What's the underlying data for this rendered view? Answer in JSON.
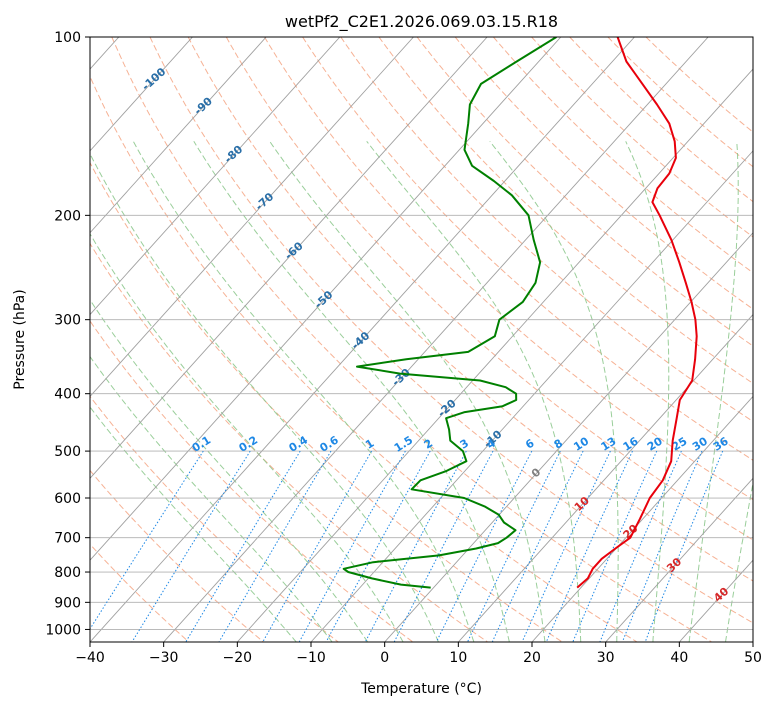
{
  "chart_data": {
    "type": "skew-t",
    "title": "wetPf2_C2E1.2026.069.03.15.R18",
    "xlabel": "Temperature (°C)",
    "ylabel": "Pressure (hPa)",
    "xlim": [
      -40,
      50
    ],
    "ylim": [
      1050,
      100
    ],
    "y_scale": "log",
    "x_ticks": [
      -40,
      -30,
      -20,
      -10,
      0,
      10,
      20,
      30,
      40,
      50
    ],
    "x_tick_labels": [
      "−40",
      "−30",
      "−20",
      "−10",
      "0",
      "10",
      "20",
      "30",
      "40",
      "50"
    ],
    "y_ticks": [
      100,
      200,
      300,
      400,
      500,
      600,
      700,
      800,
      900,
      1000
    ],
    "y_tick_labels": [
      "100",
      "200",
      "300",
      "400",
      "500",
      "600",
      "700",
      "800",
      "900",
      "1000"
    ],
    "grid": true,
    "series": [
      {
        "key": "temperature",
        "color": "#e8000b",
        "points": [
          [
            850,
            19.5
          ],
          [
            820,
            19.8
          ],
          [
            790,
            19.3
          ],
          [
            760,
            19.3
          ],
          [
            730,
            19.9
          ],
          [
            700,
            20.6
          ],
          [
            650,
            19.6
          ],
          [
            600,
            18.4
          ],
          [
            560,
            18.0
          ],
          [
            520,
            16.8
          ],
          [
            480,
            14.5
          ],
          [
            440,
            12.3
          ],
          [
            410,
            10.5
          ],
          [
            380,
            9.8
          ],
          [
            350,
            7.6
          ],
          [
            320,
            5.0
          ],
          [
            300,
            2.8
          ],
          [
            280,
            0.1
          ],
          [
            260,
            -3.0
          ],
          [
            240,
            -6.4
          ],
          [
            220,
            -10.2
          ],
          [
            200,
            -14.8
          ],
          [
            190,
            -17.4
          ],
          [
            180,
            -18.4
          ],
          [
            170,
            -18.6
          ],
          [
            160,
            -19.6
          ],
          [
            150,
            -21.8
          ],
          [
            140,
            -24.7
          ],
          [
            130,
            -28.7
          ],
          [
            120,
            -33.2
          ],
          [
            110,
            -38.1
          ],
          [
            100,
            -42.3
          ]
        ]
      },
      {
        "key": "dewpoint",
        "color": "#008000",
        "points": [
          [
            850,
            -0.4
          ],
          [
            840,
            -4.8
          ],
          [
            820,
            -9.5
          ],
          [
            800,
            -13.5
          ],
          [
            790,
            -14.5
          ],
          [
            770,
            -11.3
          ],
          [
            750,
            -3.2
          ],
          [
            730,
            1.0
          ],
          [
            715,
            3.3
          ],
          [
            700,
            3.8
          ],
          [
            680,
            4.1
          ],
          [
            660,
            1.6
          ],
          [
            640,
            -0.1
          ],
          [
            620,
            -3.0
          ],
          [
            600,
            -6.8
          ],
          [
            580,
            -15.0
          ],
          [
            560,
            -14.9
          ],
          [
            540,
            -12.5
          ],
          [
            520,
            -11.0
          ],
          [
            500,
            -12.7
          ],
          [
            480,
            -15.7
          ],
          [
            460,
            -17.2
          ],
          [
            440,
            -19.0
          ],
          [
            430,
            -17.3
          ],
          [
            420,
            -12.8
          ],
          [
            410,
            -11.7
          ],
          [
            400,
            -12.5
          ],
          [
            390,
            -14.7
          ],
          [
            380,
            -19.0
          ],
          [
            370,
            -30.7
          ],
          [
            360,
            -37.4
          ],
          [
            350,
            -31.6
          ],
          [
            340,
            -24.1
          ],
          [
            320,
            -22.4
          ],
          [
            300,
            -23.8
          ],
          [
            280,
            -22.8
          ],
          [
            260,
            -23.4
          ],
          [
            240,
            -25.3
          ],
          [
            220,
            -28.9
          ],
          [
            200,
            -32.6
          ],
          [
            185,
            -37.3
          ],
          [
            175,
            -41.5
          ],
          [
            165,
            -46.3
          ],
          [
            155,
            -49.3
          ],
          [
            140,
            -52.0
          ],
          [
            130,
            -54.1
          ],
          [
            120,
            -55.1
          ],
          [
            110,
            -53.0
          ],
          [
            100,
            -50.6
          ]
        ]
      }
    ],
    "dry_adiabats_c": [
      -30,
      -20,
      -10,
      0,
      10,
      20,
      30,
      40,
      50,
      60,
      70,
      80,
      90,
      100,
      110,
      120,
      130,
      140,
      150,
      160,
      170,
      180
    ],
    "moist_adiabats_c": [
      -15,
      -10,
      -5,
      0,
      5,
      10,
      15,
      20,
      25,
      30,
      35,
      40,
      45
    ],
    "mixing_ratios": [
      0.1,
      0.2,
      0.4,
      0.6,
      1,
      1.5,
      2,
      3,
      4,
      6,
      8,
      10,
      13,
      16,
      20,
      25,
      30,
      36
    ],
    "mixing_ratio_labels": [
      "0.1",
      "0.2",
      "0.4",
      "0.6",
      "1",
      "1.5",
      "2",
      "3",
      "4",
      "6",
      "8",
      "10",
      "13",
      "16",
      "20",
      "25",
      "30",
      "36"
    ],
    "isotherm_labels": [
      {
        "text": "-100",
        "t": -100,
        "p": 118
      },
      {
        "text": "-90",
        "t": -90,
        "p": 131
      },
      {
        "text": "-80",
        "t": -80,
        "p": 158
      },
      {
        "text": "-70",
        "t": -70,
        "p": 190
      },
      {
        "text": "-60",
        "t": -60,
        "p": 230
      },
      {
        "text": "-50",
        "t": -50,
        "p": 278
      },
      {
        "text": "-40",
        "t": -40,
        "p": 326
      },
      {
        "text": "-30",
        "t": -30,
        "p": 376
      },
      {
        "text": "-20",
        "t": -20,
        "p": 424
      },
      {
        "text": "-10",
        "t": -10,
        "p": 478
      },
      {
        "text": "0",
        "t": 0,
        "p": 545
      },
      {
        "text": "10",
        "t": 10,
        "p": 615
      },
      {
        "text": "20",
        "t": 20,
        "p": 685
      },
      {
        "text": "30",
        "t": 30,
        "p": 780
      },
      {
        "text": "40",
        "t": 40,
        "p": 875
      }
    ],
    "colors": {
      "isotherm": "#a0a0a0",
      "grid": "#b0b0b0",
      "dry_adiabat": "#f4a582",
      "moist_adiabat": "#8fc98f",
      "mixing_ratio": "#1e88e5",
      "iso_label_cold": "#2a6fa8",
      "iso_label_zero": "#808080",
      "iso_label_warm": "#d62728",
      "mixing_label": "#1e88e5",
      "frame": "#000000"
    }
  }
}
